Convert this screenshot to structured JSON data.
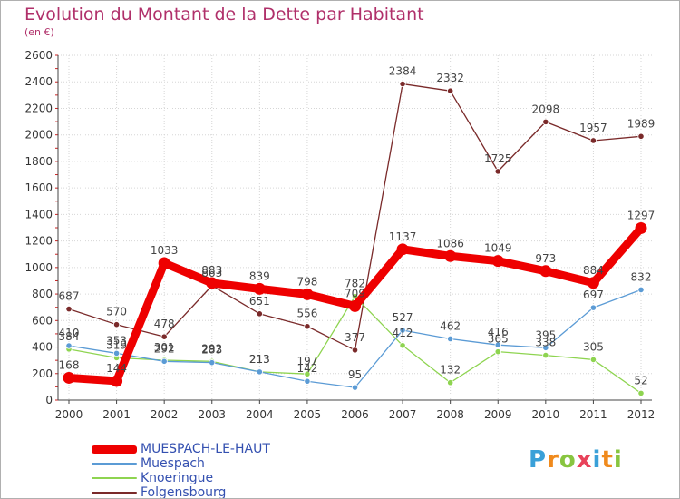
{
  "header": {
    "title": "Evolution du Montant de la Dette par Habitant",
    "subtitle": "(en €)"
  },
  "logo": {
    "text": "Proxiti"
  },
  "chart_data": {
    "type": "line",
    "title": "Evolution du Montant de la Dette par Habitant",
    "subtitle": "(en €)",
    "xlabel": "",
    "ylabel": "",
    "x": [
      "2000",
      "2001",
      "2002",
      "2003",
      "2004",
      "2005",
      "2006",
      "2007",
      "2008",
      "2009",
      "2010",
      "2011",
      "2012"
    ],
    "ylim": [
      0,
      2600
    ],
    "yticks": [
      0,
      200,
      400,
      600,
      800,
      1000,
      1200,
      1400,
      1600,
      1800,
      2000,
      2200,
      2400,
      2600
    ],
    "grid": true,
    "legend_position": "bottom-left",
    "series": [
      {
        "name": "MUESPACH-LE-HAUT",
        "color": "#ee0000",
        "values": [
          168,
          144,
          1033,
          883,
          839,
          798,
          709,
          1137,
          1086,
          1049,
          973,
          884,
          1297
        ],
        "labels": [
          "168",
          "144",
          "1033",
          "883",
          "839",
          "798",
          "709",
          "1137",
          "1086",
          "1049",
          "973",
          "884",
          "1297"
        ]
      },
      {
        "name": "Muespach",
        "color": "#5b9bd5",
        "values": [
          410,
          353,
          292,
          283,
          213,
          142,
          95,
          527,
          462,
          416,
          395,
          697,
          832
        ],
        "labels": [
          "410",
          "353",
          "292",
          "283",
          "213",
          "142",
          "95",
          "527",
          "462",
          "416",
          "395",
          "697",
          "832"
        ]
      },
      {
        "name": "Knoeringue",
        "color": "#8ed450",
        "values": [
          384,
          319,
          301,
          292,
          213,
          197,
          782,
          412,
          132,
          365,
          338,
          305,
          52
        ],
        "labels": [
          "384",
          "319",
          "301",
          "292",
          "213",
          "197",
          "782",
          "412",
          "132",
          "365",
          "338",
          "305",
          "52"
        ]
      },
      {
        "name": "Folgensbourg",
        "color": "#7a2a2a",
        "values": [
          687,
          570,
          478,
          863,
          651,
          556,
          377,
          2384,
          2332,
          1725,
          2098,
          1957,
          1989
        ],
        "labels": [
          "687",
          "570",
          "478",
          "863",
          "651",
          "556",
          "377",
          "2384",
          "2332",
          "1725",
          "2098",
          "1957",
          "1989"
        ]
      }
    ]
  }
}
